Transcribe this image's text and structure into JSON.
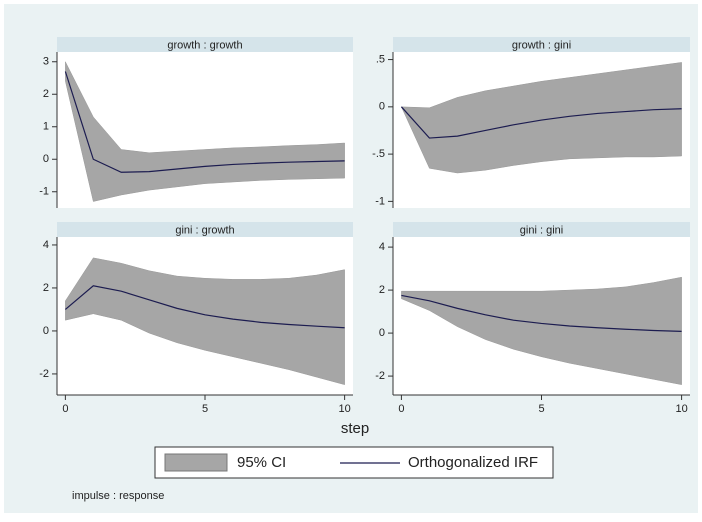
{
  "chart_data": [
    {
      "type": "irf",
      "title": "growth : growth",
      "x": [
        0,
        1,
        2,
        3,
        4,
        5,
        6,
        7,
        8,
        9,
        10
      ],
      "values": [
        2.7,
        0.0,
        -0.4,
        -0.38,
        -0.3,
        -0.22,
        -0.16,
        -0.12,
        -0.09,
        -0.07,
        -0.05
      ],
      "lower": [
        2.4,
        -1.3,
        -1.1,
        -0.95,
        -0.85,
        -0.75,
        -0.7,
        -0.65,
        -0.62,
        -0.6,
        -0.58
      ],
      "upper": [
        3.0,
        1.3,
        0.3,
        0.2,
        0.25,
        0.3,
        0.35,
        0.38,
        0.42,
        0.45,
        0.5
      ],
      "xlim": [
        -0.3,
        10.3
      ],
      "ylim": [
        -1.5,
        3.3
      ],
      "yticks": [
        -1,
        0,
        1,
        2,
        3
      ]
    },
    {
      "type": "irf",
      "title": "growth : gini",
      "x": [
        0,
        1,
        2,
        3,
        4,
        5,
        6,
        7,
        8,
        9,
        10
      ],
      "values": [
        0,
        -0.33,
        -0.31,
        -0.25,
        -0.19,
        -0.14,
        -0.1,
        -0.07,
        -0.05,
        -0.03,
        -0.02
      ],
      "lower": [
        0,
        -0.65,
        -0.7,
        -0.67,
        -0.62,
        -0.58,
        -0.55,
        -0.54,
        -0.53,
        -0.53,
        -0.52
      ],
      "upper": [
        0,
        -0.01,
        0.1,
        0.17,
        0.22,
        0.27,
        0.31,
        0.35,
        0.39,
        0.43,
        0.47
      ],
      "xlim": [
        -0.3,
        10.3
      ],
      "ylim": [
        -1.07,
        0.58
      ],
      "yticks": [
        -1,
        {
          "value": -0.5,
          "label": "-.5"
        },
        0,
        {
          "value": 0.5,
          "label": ".5"
        }
      ]
    },
    {
      "type": "irf",
      "title": "gini : growth",
      "x": [
        0,
        1,
        2,
        3,
        4,
        5,
        6,
        7,
        8,
        9,
        10
      ],
      "values": [
        1.0,
        2.1,
        1.85,
        1.45,
        1.05,
        0.75,
        0.55,
        0.4,
        0.3,
        0.22,
        0.15
      ],
      "lower": [
        0.5,
        0.8,
        0.5,
        -0.1,
        -0.55,
        -0.9,
        -1.2,
        -1.5,
        -1.8,
        -2.15,
        -2.5
      ],
      "upper": [
        1.4,
        3.4,
        3.15,
        2.8,
        2.55,
        2.45,
        2.4,
        2.4,
        2.45,
        2.6,
        2.85
      ],
      "xlim": [
        -0.3,
        10.3
      ],
      "xticks": [
        0,
        5,
        10
      ],
      "ylim": [
        -2.98,
        4.37
      ],
      "yticks": [
        -2,
        0,
        2,
        4
      ]
    },
    {
      "type": "irf",
      "title": "gini : gini",
      "x": [
        0,
        1,
        2,
        3,
        4,
        5,
        6,
        7,
        8,
        9,
        10
      ],
      "values": [
        1.75,
        1.5,
        1.15,
        0.85,
        0.6,
        0.45,
        0.33,
        0.25,
        0.18,
        0.12,
        0.08
      ],
      "lower": [
        1.6,
        1.05,
        0.3,
        -0.3,
        -0.75,
        -1.1,
        -1.4,
        -1.65,
        -1.9,
        -2.15,
        -2.4
      ],
      "upper": [
        1.95,
        1.95,
        1.95,
        1.95,
        1.95,
        1.95,
        2.0,
        2.05,
        2.15,
        2.35,
        2.6
      ],
      "xlim": [
        -0.3,
        10.3
      ],
      "xticks": [
        0,
        5,
        10
      ],
      "ylim": [
        -2.88,
        4.47
      ],
      "yticks": [
        -2,
        0,
        2,
        4
      ]
    }
  ],
  "xlabel": "step",
  "legend": [
    {
      "name": "95% CI",
      "color": "#a6a6a6"
    },
    {
      "name": "Orthogonalized IRF",
      "color": "#1c1c50"
    }
  ],
  "note": "impulse : response"
}
